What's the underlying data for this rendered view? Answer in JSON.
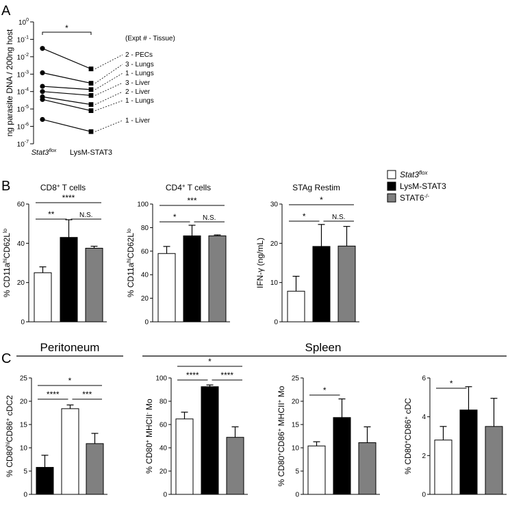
{
  "panel_labels": {
    "a": "A",
    "b": "B",
    "c": "C"
  },
  "legend": {
    "items": [
      {
        "name": "Stat3flox",
        "base": "Stat3",
        "sup": "flox",
        "color": "#ffffff"
      },
      {
        "name": "LysM-STAT3",
        "base": "LysM-STAT3",
        "sup": "",
        "color": "#000000"
      },
      {
        "name": "STAT6-/-",
        "base": "STAT6",
        "sup": "-/-",
        "color": "#808080"
      }
    ]
  },
  "sections": {
    "peritoneum": "Peritoneum",
    "spleen": "Spleen"
  },
  "chart_data": [
    {
      "id": "A",
      "type": "scatter",
      "subtype": "paired-log",
      "title": "",
      "xlabel": "",
      "ylabel": "ng parasite DNA / 200ng host",
      "yscale": "log10",
      "ylim": [
        1e-07,
        1
      ],
      "yticks": [
        {
          "base": "10",
          "exp": "0"
        },
        {
          "base": "10",
          "exp": "-1"
        },
        {
          "base": "10",
          "exp": "-2"
        },
        {
          "base": "10",
          "exp": "-3"
        },
        {
          "base": "10",
          "exp": "-4"
        },
        {
          "base": "10",
          "exp": "-5"
        },
        {
          "base": "10",
          "exp": "-6"
        },
        {
          "base": "10",
          "exp": "-7"
        }
      ],
      "groups": [
        {
          "base": "Stat3",
          "sup": "flox"
        },
        {
          "base": "LysM-STAT3",
          "sup": ""
        }
      ],
      "header": "(Expt # - Tissue)",
      "significance": [
        {
          "from": 0,
          "to": 1,
          "label": "*"
        }
      ],
      "pairs": [
        {
          "label": "2 - PECs",
          "values": [
            0.03,
            0.002
          ]
        },
        {
          "label": "3 - Lungs",
          "values": [
            0.0012,
            0.0003
          ]
        },
        {
          "label": "1 - Lungs",
          "values": [
            0.0002,
            0.00013
          ]
        },
        {
          "label": "3 - Liver",
          "values": [
            0.0001,
            6e-05
          ]
        },
        {
          "label": "2 - Liver",
          "values": [
            5e-05,
            1.8e-05
          ]
        },
        {
          "label": "1 - Lungs",
          "values": [
            3.5e-05,
            8e-06
          ]
        },
        {
          "label": "1 - Liver",
          "values": [
            2.5e-06,
            5e-07
          ]
        }
      ]
    },
    {
      "id": "B1",
      "type": "bar",
      "title": "CD8",
      "title_sup": "+",
      "title_rest": " T cells",
      "ylabel": "% CD11a",
      "ylabel_hi": "hi",
      "ylabel_mid": "CD62L",
      "ylabel_lo": "lo",
      "ylim": [
        0,
        60
      ],
      "yticks": [
        "0",
        "20",
        "40",
        "60"
      ],
      "series": [
        "Stat3flox",
        "LysM-STAT3",
        "STAT6-/-"
      ],
      "values": [
        25,
        43,
        37.5
      ],
      "errors": [
        3,
        9,
        1
      ],
      "significance": [
        {
          "from": 0,
          "to": 1,
          "label": "**"
        },
        {
          "from": 1,
          "to": 2,
          "label": "N.S."
        },
        {
          "from": 0,
          "to": 2,
          "label": "****"
        }
      ]
    },
    {
      "id": "B2",
      "type": "bar",
      "title": "CD4",
      "title_sup": "+",
      "title_rest": " T cells",
      "ylabel": "% CD11a",
      "ylabel_hi": "hi",
      "ylabel_mid": "CD62L",
      "ylabel_lo": "lo",
      "ylim": [
        0,
        100
      ],
      "yticks": [
        "0",
        "20",
        "40",
        "60",
        "80",
        "100"
      ],
      "series": [
        "Stat3flox",
        "LysM-STAT3",
        "STAT6-/-"
      ],
      "values": [
        58,
        73,
        73
      ],
      "errors": [
        6,
        9,
        0.8
      ],
      "significance": [
        {
          "from": 0,
          "to": 1,
          "label": "*"
        },
        {
          "from": 1,
          "to": 2,
          "label": "N.S."
        },
        {
          "from": 0,
          "to": 2,
          "label": "***"
        }
      ]
    },
    {
      "id": "B3",
      "type": "bar",
      "title": "STAg Restim",
      "title_sup": "",
      "title_rest": "",
      "ylabel": "IFN-γ (ng/mL)",
      "ylabel_hi": "",
      "ylabel_mid": "",
      "ylabel_lo": "",
      "ylim": [
        0,
        30
      ],
      "yticks": [
        "0",
        "10",
        "20",
        "30"
      ],
      "series": [
        "Stat3flox",
        "LysM-STAT3",
        "STAT6-/-"
      ],
      "values": [
        7.8,
        19.2,
        19.3
      ],
      "errors": [
        3.8,
        5.6,
        5
      ],
      "significance": [
        {
          "from": 0,
          "to": 1,
          "label": "*"
        },
        {
          "from": 1,
          "to": 2,
          "label": "N.S."
        },
        {
          "from": 0,
          "to": 2,
          "label": "*"
        }
      ]
    },
    {
      "id": "C1",
      "type": "bar",
      "title": "",
      "ylabel": "% CD80",
      "ylabel_hi": "hi",
      "ylabel_mid": "CD86",
      "ylabel_lo": "+",
      "ylabel_end": " cDC2",
      "ylim": [
        0,
        25
      ],
      "yticks": [
        "0",
        "5",
        "10",
        "15",
        "20",
        "25"
      ],
      "series": [
        "LysM-STAT3",
        "Stat3flox",
        "STAT6-/-"
      ],
      "values": [
        5.8,
        18.4,
        10.9
      ],
      "errors": [
        2.6,
        0.8,
        2.2
      ],
      "significance": [
        {
          "from": 0,
          "to": 1,
          "label": "****"
        },
        {
          "from": 1,
          "to": 2,
          "label": "***"
        },
        {
          "from": 0,
          "to": 2,
          "label": "*"
        }
      ]
    },
    {
      "id": "C2",
      "type": "bar",
      "title": "",
      "ylabel": "% CD80",
      "ylabel_hi": "+",
      "ylabel_mid": " MHCII",
      "ylabel_lo": "-",
      "ylabel_end": " Mo",
      "ylim": [
        0,
        100
      ],
      "yticks": [
        "0",
        "20",
        "40",
        "60",
        "80",
        "100"
      ],
      "series": [
        "Stat3flox",
        "LysM-STAT3",
        "STAT6-/-"
      ],
      "values": [
        64.8,
        92.5,
        49
      ],
      "errors": [
        5.8,
        1.5,
        9
      ],
      "significance": [
        {
          "from": 0,
          "to": 1,
          "label": "****"
        },
        {
          "from": 1,
          "to": 2,
          "label": "****"
        },
        {
          "from": 0,
          "to": 2,
          "label": "*"
        }
      ]
    },
    {
      "id": "C3",
      "type": "bar",
      "title": "",
      "ylabel": "% CD80",
      "ylabel_hi": "+",
      "ylabel_mid": "CD86",
      "ylabel_lo": "+",
      "ylabel_end": " MHCII",
      "ylabel_end_sup": "+",
      "ylabel_end2": " Mo",
      "ylim": [
        0,
        25
      ],
      "yticks": [
        "0",
        "5",
        "10",
        "15",
        "20",
        "25"
      ],
      "series": [
        "Stat3flox",
        "LysM-STAT3",
        "STAT6-/-"
      ],
      "values": [
        10.4,
        16.5,
        11.1
      ],
      "errors": [
        0.9,
        4,
        3.4
      ],
      "significance": [
        {
          "from": 0,
          "to": 1,
          "label": "*"
        }
      ]
    },
    {
      "id": "C4",
      "type": "bar",
      "title": "",
      "ylabel": "% CD80",
      "ylabel_hi": "+",
      "ylabel_mid": "CD86",
      "ylabel_lo": "+",
      "ylabel_end": " cDC",
      "ylim": [
        0,
        6
      ],
      "yticks": [
        "0",
        "2",
        "4",
        "6"
      ],
      "series": [
        "Stat3flox",
        "LysM-STAT3",
        "STAT6-/-"
      ],
      "values": [
        2.8,
        4.35,
        3.5
      ],
      "errors": [
        0.7,
        1.2,
        1.45
      ],
      "significance": [
        {
          "from": 0,
          "to": 1,
          "label": "*"
        }
      ]
    }
  ]
}
